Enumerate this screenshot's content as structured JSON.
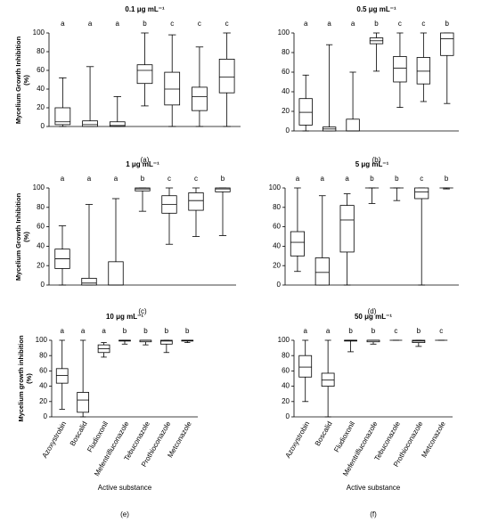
{
  "chart_data": [
    {
      "type": "box",
      "title": "0.1 μg mL⁻¹",
      "panel_label": "(a)",
      "ylabel": "Mycelium Growth Inhibition (%)",
      "color": "#000000",
      "categories": [
        null,
        null,
        null,
        null,
        null,
        null,
        null
      ],
      "ylim": [
        0,
        100
      ],
      "yticks": [
        0,
        20,
        40,
        60,
        80,
        100
      ],
      "letters": [
        "a",
        "a",
        "a",
        "b",
        "c",
        "c",
        "c"
      ],
      "boxes": [
        {
          "min": 0,
          "q1": 2,
          "median": 5,
          "q3": 20,
          "max": 52
        },
        {
          "min": 0,
          "q1": 0,
          "median": 2,
          "q3": 6,
          "max": 64
        },
        {
          "min": 0,
          "q1": 0,
          "median": 1,
          "q3": 5,
          "max": 32
        },
        {
          "min": 22,
          "q1": 46,
          "median": 60,
          "q3": 66,
          "max": 100
        },
        {
          "min": 0,
          "q1": 23,
          "median": 40,
          "q3": 58,
          "max": 98
        },
        {
          "min": 0,
          "q1": 17,
          "median": 32,
          "q3": 42,
          "max": 85
        },
        {
          "min": 0,
          "q1": 36,
          "median": 53,
          "q3": 72,
          "max": 100
        }
      ]
    },
    {
      "type": "box",
      "title": "0.5 μg mL⁻¹",
      "panel_label": "(b)",
      "color": "#000000",
      "categories": [
        null,
        null,
        null,
        null,
        null,
        null,
        null
      ],
      "ylim": [
        0,
        100
      ],
      "yticks": [
        0,
        20,
        40,
        60,
        80,
        100
      ],
      "letters": [
        "a",
        "a",
        "a",
        "b",
        "c",
        "c",
        "b"
      ],
      "boxes": [
        {
          "min": 0,
          "q1": 6,
          "median": 19,
          "q3": 33,
          "max": 57
        },
        {
          "min": 0,
          "q1": 0,
          "median": 2,
          "q3": 4,
          "max": 88
        },
        {
          "min": 0,
          "q1": 0,
          "median": 0,
          "q3": 12,
          "max": 60
        },
        {
          "min": 61,
          "q1": 89,
          "median": 92,
          "q3": 95,
          "max": 100
        },
        {
          "min": 24,
          "q1": 50,
          "median": 64,
          "q3": 76,
          "max": 100
        },
        {
          "min": 30,
          "q1": 48,
          "median": 61,
          "q3": 75,
          "max": 100
        },
        {
          "min": 28,
          "q1": 77,
          "median": 94,
          "q3": 100,
          "max": 100
        }
      ]
    },
    {
      "type": "box",
      "title": "1 μg mL⁻¹",
      "panel_label": "(c)",
      "ylabel": "Mycelium Growth Inhibition (%)",
      "color": "#000000",
      "categories": [
        null,
        null,
        null,
        null,
        null,
        null,
        null
      ],
      "ylim": [
        0,
        100
      ],
      "yticks": [
        0,
        20,
        40,
        60,
        80,
        100
      ],
      "letters": [
        "a",
        "a",
        "a",
        "b",
        "c",
        "c",
        "b"
      ],
      "boxes": [
        {
          "min": 0,
          "q1": 17,
          "median": 27,
          "q3": 37,
          "max": 61
        },
        {
          "min": 0,
          "q1": 0,
          "median": 2,
          "q3": 7,
          "max": 83
        },
        {
          "min": 0,
          "q1": 0,
          "median": 0,
          "q3": 24,
          "max": 89
        },
        {
          "min": 76,
          "q1": 97,
          "median": 99,
          "q3": 100,
          "max": 100
        },
        {
          "min": 42,
          "q1": 74,
          "median": 83,
          "q3": 92,
          "max": 100
        },
        {
          "min": 50,
          "q1": 77,
          "median": 87,
          "q3": 95,
          "max": 100
        },
        {
          "min": 51,
          "q1": 96,
          "median": 99,
          "q3": 100,
          "max": 100
        }
      ]
    },
    {
      "type": "box",
      "title": "5 μg mL⁻¹",
      "panel_label": "(d)",
      "color": "#000000",
      "categories": [
        null,
        null,
        null,
        null,
        null,
        null,
        null
      ],
      "ylim": [
        0,
        100
      ],
      "yticks": [
        0,
        20,
        40,
        60,
        80,
        100
      ],
      "letters": [
        "a",
        "a",
        "a",
        "b",
        "b",
        "c",
        "b"
      ],
      "boxes": [
        {
          "min": 14,
          "q1": 30,
          "median": 44,
          "q3": 55,
          "max": 100
        },
        {
          "min": 0,
          "q1": 0,
          "median": 13,
          "q3": 28,
          "max": 92
        },
        {
          "min": 0,
          "q1": 34,
          "median": 67,
          "q3": 82,
          "max": 94
        },
        {
          "min": 84,
          "q1": 100,
          "median": 100,
          "q3": 100,
          "max": 100
        },
        {
          "min": 87,
          "q1": 100,
          "median": 100,
          "q3": 100,
          "max": 100
        },
        {
          "min": 0,
          "q1": 89,
          "median": 96,
          "q3": 100,
          "max": 100
        },
        {
          "min": 99,
          "q1": 100,
          "median": 100,
          "q3": 100,
          "max": 100
        }
      ]
    },
    {
      "type": "box",
      "title": "10 μg mL⁻¹",
      "panel_label": "(e)",
      "ylabel": "Mycelium growth inhibition (%)",
      "xlabel": "Active substance",
      "color": "#000000",
      "categories": [
        "Azoxystrobin",
        "Boscalid",
        "Fludioxonil",
        "Mefentrifluconazole",
        "Tebuconazole",
        "Prothioconazole",
        "Metconazole"
      ],
      "ylim": [
        0,
        100
      ],
      "yticks": [
        0,
        20,
        40,
        60,
        80,
        100
      ],
      "letters": [
        "a",
        "a",
        "a",
        "b",
        "b",
        "b",
        "b"
      ],
      "boxes": [
        {
          "min": 10,
          "q1": 44,
          "median": 54,
          "q3": 63,
          "max": 100
        },
        {
          "min": 0,
          "q1": 6,
          "median": 22,
          "q3": 32,
          "max": 100
        },
        {
          "min": 78,
          "q1": 84,
          "median": 89,
          "q3": 94,
          "max": 97
        },
        {
          "min": 95,
          "q1": 99,
          "median": 100,
          "q3": 100,
          "max": 100
        },
        {
          "min": 94,
          "q1": 98,
          "median": 100,
          "q3": 100,
          "max": 100
        },
        {
          "min": 84,
          "q1": 95,
          "median": 99,
          "q3": 100,
          "max": 100
        },
        {
          "min": 97,
          "q1": 99,
          "median": 100,
          "q3": 100,
          "max": 100
        }
      ]
    },
    {
      "type": "box",
      "title": "50 μg mL⁻¹",
      "panel_label": "(f)",
      "xlabel": "Active substance",
      "color": "#000000",
      "categories": [
        "Azoxystrobin",
        "Boscalid",
        "Fludioxonil",
        "Mefentrifluconazole",
        "Tebuconazole",
        "Prothioconazole",
        "Metconazole"
      ],
      "ylim": [
        0,
        100
      ],
      "yticks": [
        0,
        20,
        40,
        60,
        80,
        100
      ],
      "letters": [
        "a",
        "a",
        "b",
        "b",
        "c",
        "b",
        "c"
      ],
      "boxes": [
        {
          "min": 20,
          "q1": 52,
          "median": 65,
          "q3": 80,
          "max": 100
        },
        {
          "min": 0,
          "q1": 40,
          "median": 48,
          "q3": 57,
          "max": 100
        },
        {
          "min": 85,
          "q1": 99,
          "median": 100,
          "q3": 100,
          "max": 100
        },
        {
          "min": 95,
          "q1": 98,
          "median": 100,
          "q3": 100,
          "max": 100
        },
        {
          "min": 100,
          "q1": 100,
          "median": 100,
          "q3": 100,
          "max": 100
        },
        {
          "min": 92,
          "q1": 97,
          "median": 99,
          "q3": 100,
          "max": 100
        },
        {
          "min": 100,
          "q1": 100,
          "median": 100,
          "q3": 100,
          "max": 100
        }
      ]
    }
  ]
}
